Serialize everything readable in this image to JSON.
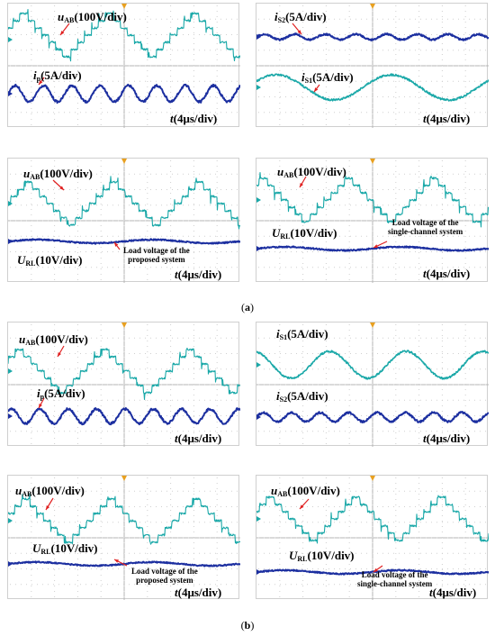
{
  "colors": {
    "cyan_trace": "#1aa8a8",
    "blue_trace": "#1c2fa0",
    "grid": "#b5b5b5",
    "marker": "#e8a020",
    "arrow": "#e02020"
  },
  "captions": {
    "a": "a",
    "b": "b"
  },
  "panels": [
    {
      "id": "a1",
      "labels": {
        "u1": "u",
        "u1_sub": "AB",
        "u1_unit": "(100V/div)",
        "u2": "i",
        "u2_sub": "p",
        "u2_unit": "(5A/div)",
        "time_t": "t",
        "time_unit": "(4μs/div)"
      }
    },
    {
      "id": "a2",
      "labels": {
        "u1": "i",
        "u1_sub": "S2",
        "u1_unit": "(5A/div)",
        "u2": "i",
        "u2_sub": "S1",
        "u2_unit": "(5A/div)",
        "time_t": "t",
        "time_unit": "(4μs/div)"
      }
    },
    {
      "id": "a3",
      "labels": {
        "u1": "u",
        "u1_sub": "AB",
        "u1_unit": "(100V/div)",
        "u2": "U",
        "u2_sub": "RL",
        "u2_unit": "(10V/div)",
        "note_line1": "Load voltage of the",
        "note_line2": "proposed system",
        "time_t": "t",
        "time_unit": "(4μs/div)"
      }
    },
    {
      "id": "a4",
      "labels": {
        "u1": "u",
        "u1_sub": "AB",
        "u1_unit": "(100V/div)",
        "u2": "U",
        "u2_sub": "RL",
        "u2_unit": "(10V/div)",
        "note_line1": "Load voltage of  the",
        "note_line2": "single-channel system",
        "time_t": "t",
        "time_unit": "(4μs/div)"
      }
    },
    {
      "id": "b1",
      "labels": {
        "u1": "u",
        "u1_sub": "AB",
        "u1_unit": "(100V/div)",
        "u2": "i",
        "u2_sub": "p",
        "u2_unit": "(5A/div)",
        "time_t": "t",
        "time_unit": "(4μs/div)"
      }
    },
    {
      "id": "b2",
      "labels": {
        "u1": "i",
        "u1_sub": "S1",
        "u1_unit": "(5A/div)",
        "u2": "i",
        "u2_sub": "S2",
        "u2_unit": "(5A/div)",
        "time_t": "t",
        "time_unit": "(4μs/div)"
      }
    },
    {
      "id": "b3",
      "labels": {
        "u1": "u",
        "u1_sub": "AB",
        "u1_unit": "(100V/div)",
        "u2": "U",
        "u2_sub": "RL",
        "u2_unit": "(10V/div)",
        "note_line1": "Load voltage of the",
        "note_line2": "proposed system",
        "time_t": "t",
        "time_unit": "(4μs/div)"
      }
    },
    {
      "id": "b4",
      "labels": {
        "u1": "u",
        "u1_sub": "AB",
        "u1_unit": "(100V/div)",
        "u2": "U",
        "u2_sub": "RL",
        "u2_unit": "(10V/div)",
        "note_line1": "Load voltage of the",
        "note_line2": "single-channel system",
        "time_t": "t",
        "time_unit": "(4μs/div)"
      }
    }
  ]
}
